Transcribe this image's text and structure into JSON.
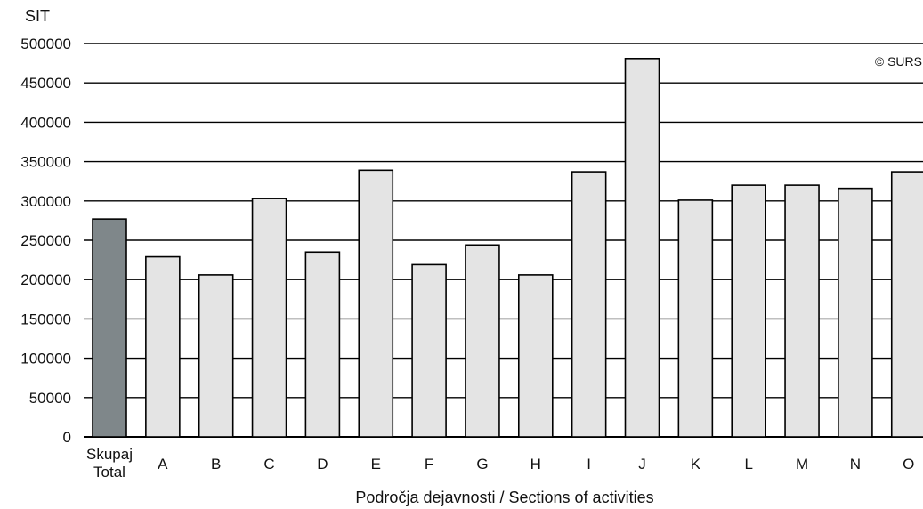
{
  "chart_data": {
    "type": "bar",
    "title": "",
    "ylabel": "SIT",
    "xlabel": "Področja dejavnosti / Sections of activities",
    "copyright": "© SURS",
    "ylim": [
      0,
      500000
    ],
    "yticks": [
      "0",
      "50000",
      "100000",
      "150000",
      "200000",
      "250000",
      "300000",
      "350000",
      "400000",
      "450000",
      "500000"
    ],
    "grid": true,
    "legend": "none",
    "categories": [
      [
        "Skupaj",
        "Total"
      ],
      [
        "A"
      ],
      [
        "B"
      ],
      [
        "C"
      ],
      [
        "D"
      ],
      [
        "E"
      ],
      [
        "F"
      ],
      [
        "G"
      ],
      [
        "H"
      ],
      [
        "I"
      ],
      [
        "J"
      ],
      [
        "K"
      ],
      [
        "L"
      ],
      [
        "M"
      ],
      [
        "N"
      ],
      [
        "O"
      ]
    ],
    "values": [
      277000,
      229000,
      206000,
      303000,
      235000,
      339000,
      219000,
      244000,
      206000,
      337000,
      481000,
      301000,
      320000,
      320000,
      316000,
      337000
    ],
    "colors": {
      "highlight": "#7f878a",
      "bar": "#e4e4e4",
      "outline": "#000000",
      "grid": "#000000"
    }
  }
}
